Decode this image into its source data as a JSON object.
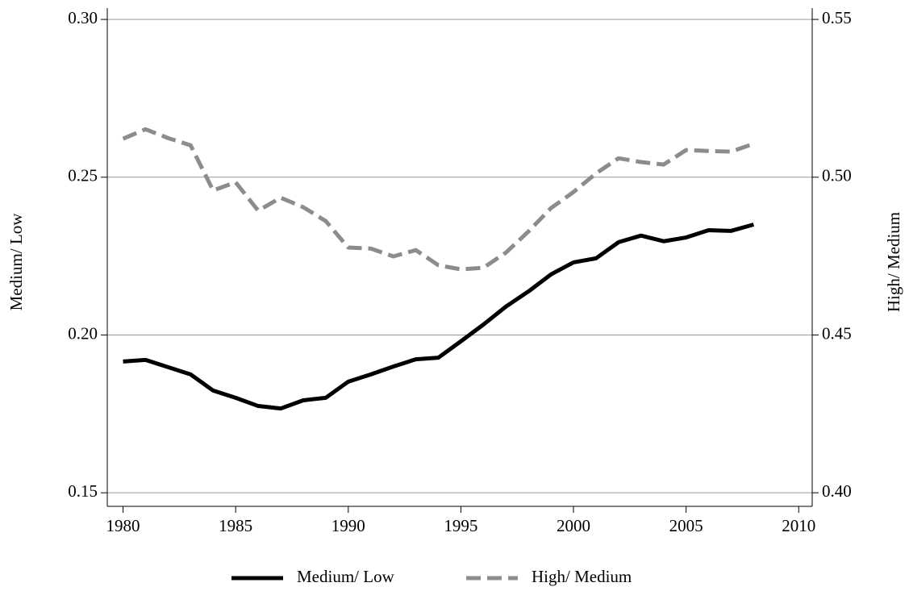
{
  "chart_data": {
    "type": "line",
    "x": [
      1980,
      1981,
      1982,
      1983,
      1984,
      1985,
      1986,
      1987,
      1988,
      1989,
      1990,
      1991,
      1992,
      1993,
      1994,
      1995,
      1996,
      1997,
      1998,
      1999,
      2000,
      2001,
      2002,
      2003,
      2004,
      2005,
      2006,
      2007,
      2008
    ],
    "series": [
      {
        "name": "Medium/ Low",
        "color": "#000000",
        "dash": false,
        "axis": "y",
        "values": [
          0.1916,
          0.1921,
          0.1898,
          0.1875,
          0.1824,
          0.1801,
          0.1775,
          0.1767,
          0.1793,
          0.1801,
          0.1852,
          0.1875,
          0.19,
          0.1923,
          0.1928,
          0.198,
          0.2033,
          0.209,
          0.2138,
          0.2192,
          0.223,
          0.2243,
          0.2294,
          0.2315,
          0.2297,
          0.2309,
          0.2332,
          0.233,
          0.235
        ]
      },
      {
        "name": "High/ Medium",
        "color": "#8c8c8c",
        "dash": true,
        "axis": "y2",
        "values": [
          0.5122,
          0.5152,
          0.5124,
          0.5101,
          0.4958,
          0.4984,
          0.4894,
          0.4935,
          0.4905,
          0.4861,
          0.4777,
          0.4774,
          0.4749,
          0.4769,
          0.4721,
          0.4708,
          0.4713,
          0.4761,
          0.4828,
          0.4902,
          0.4953,
          0.5012,
          0.506,
          0.5048,
          0.504,
          0.5086,
          0.5083,
          0.5081,
          0.5106
        ]
      }
    ],
    "ylabel": "Medium/ Low",
    "y2label": "High/ Medium",
    "xlim": [
      1979.3,
      2010.6
    ],
    "xticks": [
      1980,
      1985,
      1990,
      1995,
      2000,
      2005,
      2010
    ],
    "ylim": [
      0.1457,
      0.3036
    ],
    "yticks": [
      0.15,
      {
        "value": 0.2,
        "label": "0.20"
      },
      0.25,
      {
        "value": 0.3,
        "label": "0.30"
      }
    ],
    "y2lim": [
      0.3957,
      0.5536
    ],
    "y2ticks": [
      {
        "value": 0.4,
        "label": "0.40"
      },
      0.45,
      {
        "value": 0.5,
        "label": "0.50"
      },
      0.55
    ],
    "grid": true,
    "legend": "bottom"
  }
}
